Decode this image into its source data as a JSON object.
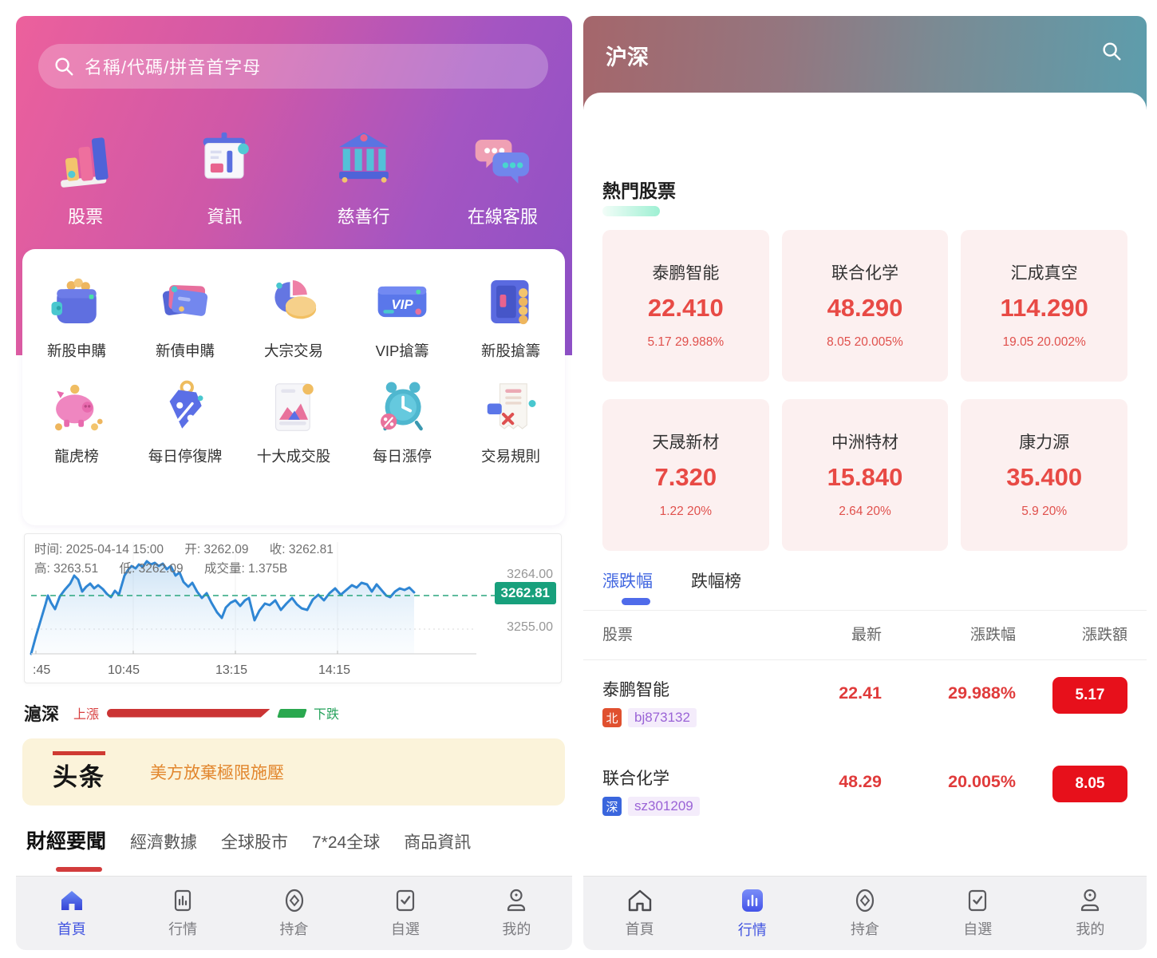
{
  "chart_data": {
    "type": "line",
    "title": "滬深 intraday index line",
    "time": "2025-04-14 15:00",
    "open": 3262.09,
    "close": 3262.81,
    "high": 3263.51,
    "low": 3262.09,
    "volume": "1.375B",
    "reference_line": 3262.81,
    "y_axis_labels": [
      "3264.00",
      "3255.00"
    ],
    "x_ticks": [
      ":45",
      "10:45",
      "13:15",
      "14:15"
    ],
    "ylim": [
      3252,
      3264.5
    ],
    "line_color": "#2f86d4"
  },
  "left_screen": {
    "search": {
      "placeholder": "名稱/代碼/拼音首字母"
    },
    "quick_menu": [
      {
        "label": "股票",
        "icon": "bar-chart-3d-icon"
      },
      {
        "label": "資訊",
        "icon": "news-board-3d-icon"
      },
      {
        "label": "慈善行",
        "icon": "bank-3d-icon"
      },
      {
        "label": "在線客服",
        "icon": "chat-3d-icon"
      }
    ],
    "features_row1": [
      {
        "label": "新股申購",
        "icon": "wallet-3d-icon"
      },
      {
        "label": "新債申購",
        "icon": "cards-3d-icon"
      },
      {
        "label": "大宗交易",
        "icon": "pie-3d-icon"
      },
      {
        "label": "VIP搶籌",
        "icon": "vip-card-3d-icon"
      },
      {
        "label": "新股搶籌",
        "icon": "safe-3d-icon"
      }
    ],
    "features_row2": [
      {
        "label": "龍虎榜",
        "icon": "piggy-bank-3d-icon"
      },
      {
        "label": "每日停復牌",
        "icon": "percent-tag-3d-icon"
      },
      {
        "label": "十大成交股",
        "icon": "chart-doc-3d-icon"
      },
      {
        "label": "每日漲停",
        "icon": "alarm-clock-3d-icon"
      },
      {
        "label": "交易規則",
        "icon": "rules-doc-3d-icon"
      }
    ],
    "vip_icon_text": "VIP",
    "index_chart": {
      "tooltip": {
        "time": "时间: 2025-04-14 15:00",
        "open": "开: 3262.09",
        "close": "收: 3262.81",
        "high": "高: 3263.51",
        "low": "低: 3262.09",
        "volume": "成交量: 1.375B"
      },
      "y_axis_top": "3264.00",
      "current_badge": "3262.81",
      "y_axis_bottom": "3255.00",
      "x_ticks": [
        ":45",
        "10:45",
        "13:15",
        "14:15"
      ]
    },
    "market_legend": {
      "index_name": "滬深",
      "up_label": "上漲",
      "down_label": "下跌"
    },
    "headline": {
      "logo": "头条",
      "text": "美方放棄極限施壓"
    },
    "news_tabs": [
      {
        "label": "財經要聞",
        "active": true
      },
      {
        "label": "經濟數據",
        "active": false
      },
      {
        "label": "全球股市",
        "active": false
      },
      {
        "label": "7*24全球",
        "active": false
      },
      {
        "label": "商品資訊",
        "active": false
      }
    ],
    "bottom_nav": [
      {
        "label": "首頁",
        "icon": "home-icon",
        "active": true
      },
      {
        "label": "行情",
        "icon": "market-icon",
        "active": false
      },
      {
        "label": "持倉",
        "icon": "position-icon",
        "active": false
      },
      {
        "label": "自選",
        "icon": "watchlist-icon",
        "active": false
      },
      {
        "label": "我的",
        "icon": "profile-icon",
        "active": false
      }
    ]
  },
  "right_screen": {
    "header": {
      "title": "沪深",
      "search_icon": "search-icon"
    },
    "hot_section": {
      "title": "熱門股票"
    },
    "hot_stocks": [
      {
        "name": "泰鹏智能",
        "price": "22.410",
        "change": "5.17 29.988%"
      },
      {
        "name": "联合化学",
        "price": "48.290",
        "change": "8.05 20.005%"
      },
      {
        "name": "汇成真空",
        "price": "114.290",
        "change": "19.05 20.002%"
      },
      {
        "name": "天晟新材",
        "price": "7.320",
        "change": "1.22 20%"
      },
      {
        "name": "中洲特材",
        "price": "15.840",
        "change": "2.64 20%"
      },
      {
        "name": "康力源",
        "price": "35.400",
        "change": "5.9 20%"
      }
    ],
    "rank_tabs": [
      {
        "label": "漲跌幅",
        "active": true
      },
      {
        "label": "跌幅榜",
        "active": false
      }
    ],
    "table": {
      "headers": [
        "股票",
        "最新",
        "漲跌幅",
        "漲跌額"
      ],
      "rows": [
        {
          "name": "泰鹏智能",
          "exchange_badge": "北",
          "exchange_class": "bj",
          "code": "bj873132",
          "last": "22.41",
          "change_pct": "29.988%",
          "change_amt": "5.17"
        },
        {
          "name": "联合化学",
          "exchange_badge": "深",
          "exchange_class": "sz",
          "code": "sz301209",
          "last": "48.29",
          "change_pct": "20.005%",
          "change_amt": "8.05"
        }
      ]
    },
    "bottom_nav": [
      {
        "label": "首頁",
        "icon": "home-outline-icon",
        "active": false
      },
      {
        "label": "行情",
        "icon": "market-filled-icon",
        "active": true
      },
      {
        "label": "持倉",
        "icon": "position-icon",
        "active": false
      },
      {
        "label": "自選",
        "icon": "watchlist-icon",
        "active": false
      },
      {
        "label": "我的",
        "icon": "profile-icon",
        "active": false
      }
    ]
  },
  "colors": {
    "left_gradient_start": "#ec609c",
    "left_gradient_end": "#8d50c6",
    "right_gradient_start": "#a5666b",
    "right_gradient_end": "#5d9dac",
    "price_red": "#e84a45",
    "pill_red": "#e7101b",
    "badge_green": "#18a07c",
    "tab_blue": "#4166e0",
    "code_purple": "#9a63d6",
    "banner_orange": "#e2862d",
    "up_red": "#cb3434",
    "down_green": "#2aa84f"
  }
}
